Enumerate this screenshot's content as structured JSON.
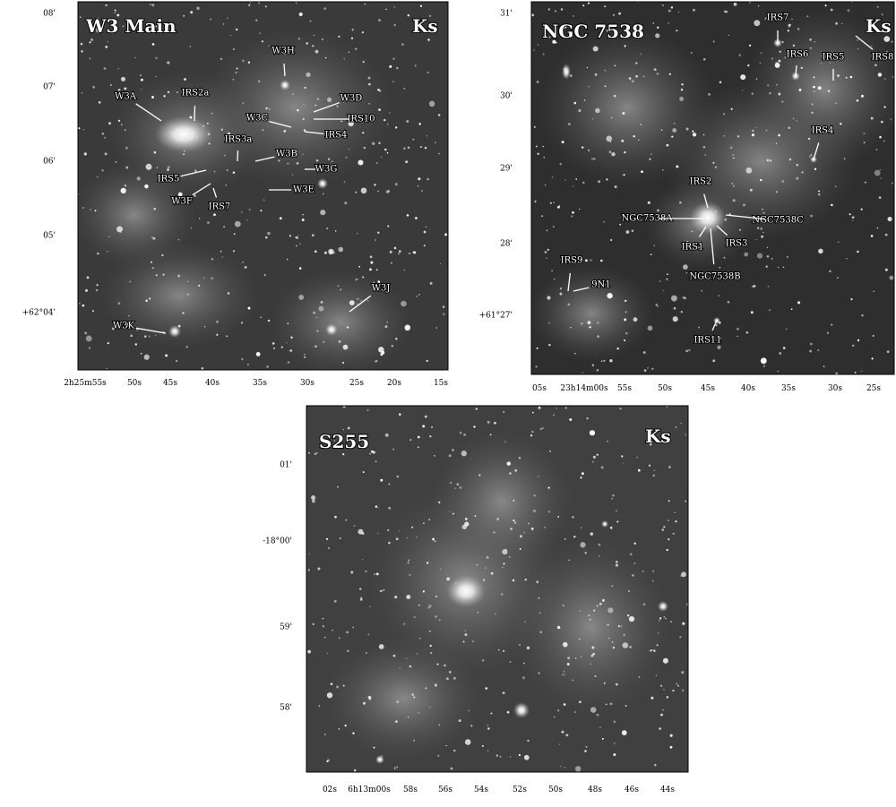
{
  "panels": [
    {
      "title": "W3 Main",
      "band": "Ks",
      "labels": [
        "W3A",
        "IRS2a",
        "W3H",
        "W3D",
        "W3C",
        "IRS10",
        "IRS4",
        "IRS3a",
        "W3B",
        "W3G",
        "IRS5",
        "W3F",
        "IRS7",
        "W3E",
        "W3J",
        "W3K"
      ],
      "y_ticks": [
        "08'",
        "07'",
        "06'",
        "05'",
        "+62°04'"
      ],
      "x_ticks": [
        "2h25m55s",
        "50s",
        "45s",
        "40s",
        "35s",
        "30s",
        "25s",
        "20s",
        "15s"
      ]
    },
    {
      "title": "NGC 7538",
      "band": "Ks",
      "labels": [
        "IRS7",
        "IRS6",
        "IRS5",
        "IRS8",
        "IRS4",
        "IRS2",
        "NGC7538A",
        "NGC7538C",
        "IRS1",
        "IRS3",
        "NGC7538B",
        "IRS9",
        "9N1",
        "IRS11"
      ],
      "y_ticks": [
        "31'",
        "30'",
        "29'",
        "28'",
        "+61°27'"
      ],
      "x_ticks": [
        "05s",
        "23h14m00s",
        "55s",
        "50s",
        "45s",
        "40s",
        "35s",
        "30s",
        "25s"
      ]
    },
    {
      "title": "S255",
      "band": "Ks",
      "labels": [],
      "y_ticks": [
        "01'",
        "-18°00'",
        "59'",
        "58'"
      ],
      "x_ticks": [
        "02s",
        "6h13m00s",
        "58s",
        "56s",
        "54s",
        "52s",
        "50s",
        "48s",
        "46s",
        "44s"
      ]
    }
  ]
}
